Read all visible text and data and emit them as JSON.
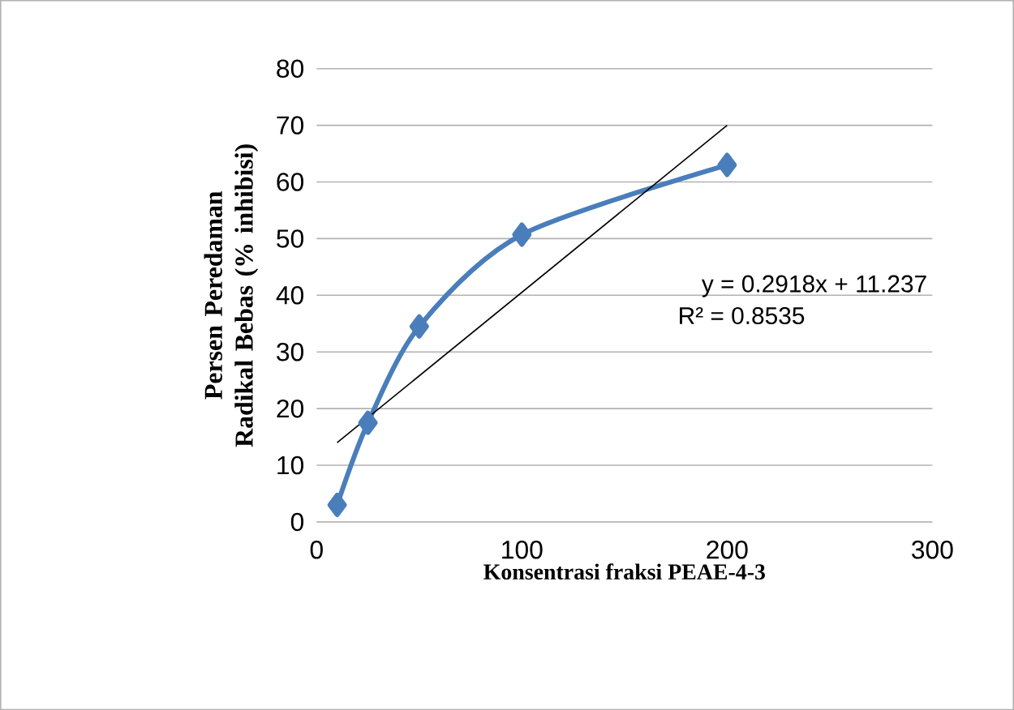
{
  "chart_data": {
    "type": "line",
    "xlabel": "Konsentrasi fraksi PEAE-4-3",
    "ylabel": "Persen Peredaman Radikal Bebas (% inhibisi)",
    "xlim": [
      0,
      300
    ],
    "xticks": [
      0,
      100,
      200,
      300
    ],
    "ylim": [
      0,
      80
    ],
    "yticks": [
      0,
      10,
      20,
      30,
      40,
      50,
      60,
      70,
      80
    ],
    "grid": "y",
    "series": [
      {
        "color": "#4a7ebb",
        "marker": "diamond",
        "line_style": "solid",
        "x": [
          10,
          25,
          50,
          100,
          200
        ],
        "values": [
          3,
          17.5,
          34.5,
          50.7,
          63
        ]
      },
      {
        "color": "#000000",
        "marker": "none",
        "line_style": "solid",
        "x": [
          10,
          200
        ],
        "values": [
          14,
          70
        ]
      }
    ],
    "annotations": [
      "y = 0.2918x + 11.237",
      "R² = 0.8535"
    ]
  }
}
